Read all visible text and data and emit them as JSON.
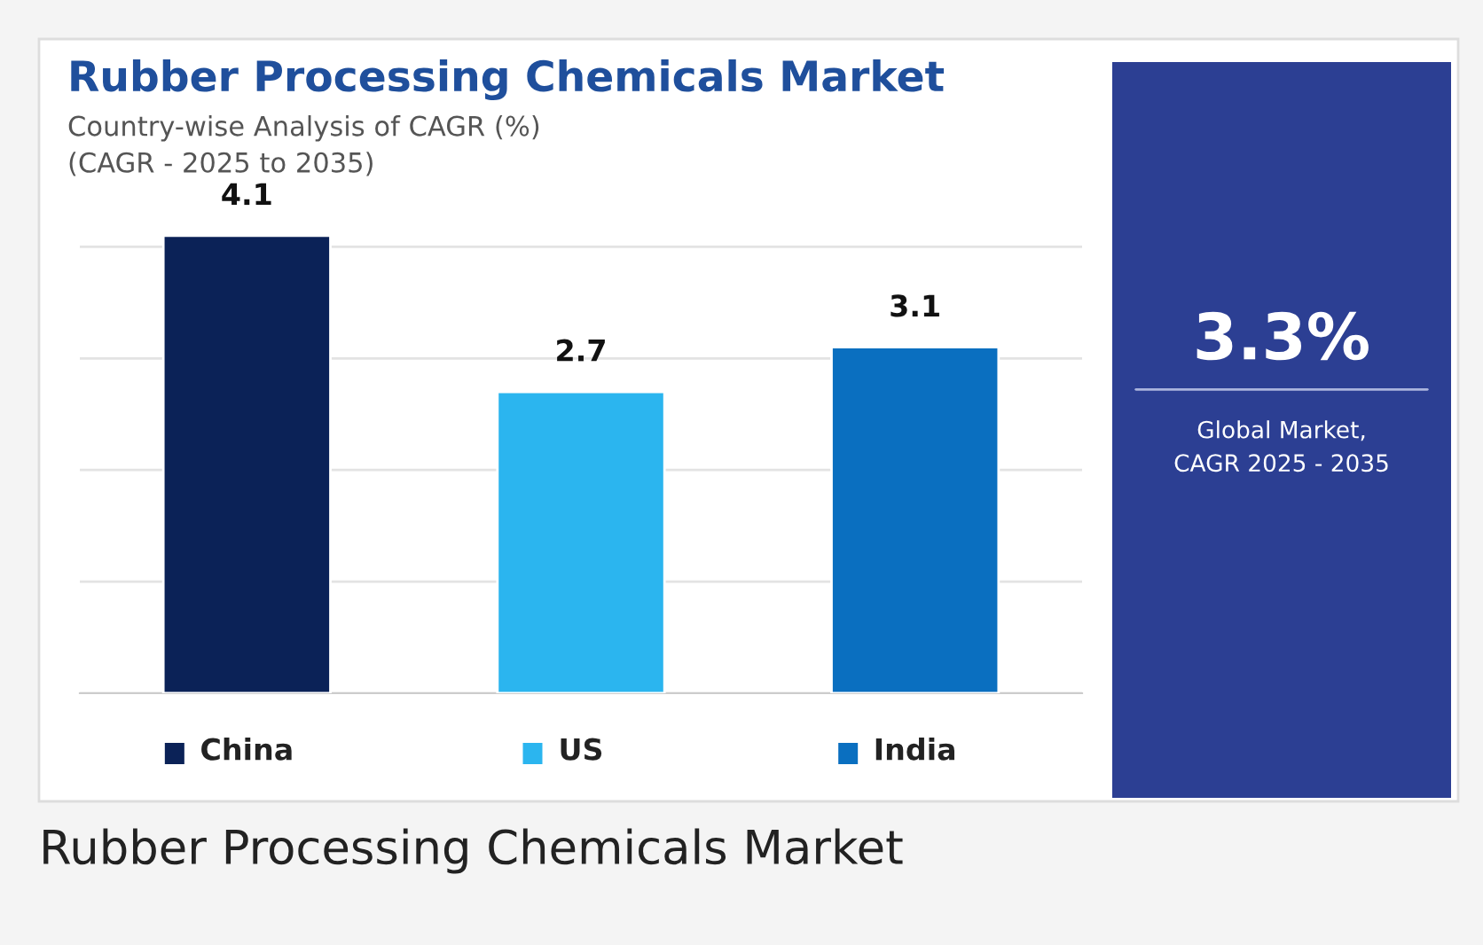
{
  "chart_data": [
    {
      "type": "bar",
      "title": "Rubber Processing Chemicals Market",
      "subtitle": "Country-wise Analysis of CAGR (%)\n(CAGR - 2025 to 2035)",
      "categories": [
        "China",
        "US",
        "India"
      ],
      "values": [
        4.1,
        2.7,
        3.1
      ],
      "colors": [
        "#0b2257",
        "#2bb5ef",
        "#0a6fc0"
      ],
      "data_labels": true,
      "yticks": [
        {
          "value": 0,
          "label": null
        },
        {
          "value": 1,
          "label": null
        },
        {
          "value": 2,
          "label": null
        },
        {
          "value": 3,
          "label": null
        },
        {
          "value": 4,
          "label": null
        }
      ],
      "tick_labels": "x",
      "grid": "y",
      "annotations": [
        "Rubber Processing Chemicals Market"
      ]
    },
    {
      "type": "other",
      "title": "3.3%",
      "annotations": [
        "Global Market,\nCAGR 2025 - 2035"
      ]
    }
  ]
}
